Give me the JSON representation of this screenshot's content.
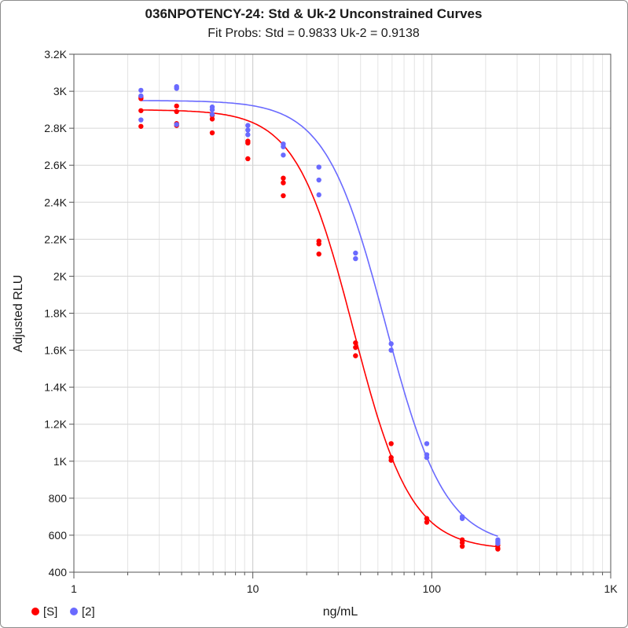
{
  "chart_data": {
    "type": "scatter",
    "title": "036NPOTENCY-24: Std & Uk-2  Unconstrained Curves",
    "subtitle": "Fit Probs: Std = 0.9833  Uk-2 = 0.9138",
    "xlabel": "ng/mL",
    "ylabel": "Adjusted RLU",
    "x_scale": "log",
    "xlim": [
      1,
      1000
    ],
    "ylim": [
      400,
      3200
    ],
    "x_ticks": [
      1,
      10,
      100,
      1000
    ],
    "x_tick_labels": [
      "1",
      "10",
      "100",
      "1K"
    ],
    "y_ticks": [
      400,
      600,
      800,
      1000,
      1200,
      1400,
      1600,
      1800,
      2000,
      2200,
      2400,
      2600,
      2800,
      3000,
      3200
    ],
    "y_tick_labels": [
      "400",
      "600",
      "800",
      "1K",
      "1.2K",
      "1.4K",
      "1.6K",
      "1.8K",
      "2K",
      "2.2K",
      "2.4K",
      "2.6K",
      "2.8K",
      "3K",
      "3.2K"
    ],
    "grid": true,
    "legend_position": "bottom-left",
    "series": [
      {
        "name": "[S]",
        "color": "#ff0000",
        "points": [
          [
            2.37,
            2970
          ],
          [
            2.37,
            2960
          ],
          [
            2.37,
            2895
          ],
          [
            2.37,
            2810
          ],
          [
            3.75,
            2920
          ],
          [
            3.75,
            2890
          ],
          [
            3.75,
            2825
          ],
          [
            3.75,
            2815
          ],
          [
            5.93,
            2870
          ],
          [
            5.93,
            2850
          ],
          [
            5.93,
            2775
          ],
          [
            9.38,
            2730
          ],
          [
            9.38,
            2720
          ],
          [
            9.38,
            2635
          ],
          [
            14.8,
            2530
          ],
          [
            14.8,
            2505
          ],
          [
            14.8,
            2435
          ],
          [
            23.4,
            2190
          ],
          [
            23.4,
            2175
          ],
          [
            23.4,
            2120
          ],
          [
            37.5,
            1640
          ],
          [
            37.5,
            1615
          ],
          [
            37.5,
            1570
          ],
          [
            59.3,
            1095
          ],
          [
            59.3,
            1020
          ],
          [
            59.3,
            1005
          ],
          [
            93.8,
            690
          ],
          [
            93.8,
            670
          ],
          [
            148,
            575
          ],
          [
            148,
            560
          ],
          [
            148,
            540
          ],
          [
            234,
            545
          ],
          [
            234,
            530
          ],
          [
            234,
            525
          ]
        ],
        "fit_curve": {
          "model": "4PL",
          "top": 2900,
          "bottom": 522,
          "ec50": 36.5,
          "slope": 2.7
        }
      },
      {
        "name": "[2]",
        "color": "#6a6aff",
        "points": [
          [
            2.37,
            3005
          ],
          [
            2.37,
            2975
          ],
          [
            2.37,
            2845
          ],
          [
            3.75,
            3025
          ],
          [
            3.75,
            3015
          ],
          [
            3.75,
            2820
          ],
          [
            5.93,
            2915
          ],
          [
            5.93,
            2900
          ],
          [
            5.93,
            2875
          ],
          [
            9.38,
            2815
          ],
          [
            9.38,
            2790
          ],
          [
            9.38,
            2765
          ],
          [
            14.8,
            2715
          ],
          [
            14.8,
            2700
          ],
          [
            14.8,
            2655
          ],
          [
            23.4,
            2590
          ],
          [
            23.4,
            2520
          ],
          [
            23.4,
            2440
          ],
          [
            37.5,
            2125
          ],
          [
            37.5,
            2095
          ],
          [
            59.3,
            1635
          ],
          [
            59.3,
            1600
          ],
          [
            93.8,
            1095
          ],
          [
            93.8,
            1035
          ],
          [
            93.8,
            1020
          ],
          [
            148,
            700
          ],
          [
            148,
            690
          ],
          [
            234,
            575
          ],
          [
            234,
            565
          ],
          [
            234,
            555
          ]
        ],
        "fit_curve": {
          "model": "4PL",
          "top": 2950,
          "bottom": 540,
          "ec50": 55,
          "slope": 2.6
        }
      }
    ]
  }
}
